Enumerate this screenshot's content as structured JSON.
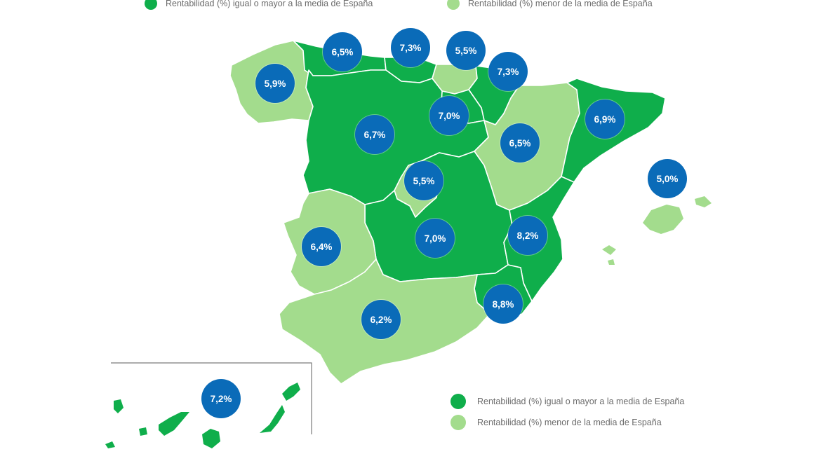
{
  "colors": {
    "above_or_equal": "#0fae4b",
    "below": "#a3dc8d",
    "bubble": "#0a6bb8"
  },
  "legend_top": {
    "above_label": "Rentabilidad (%) igual o mayor a la media de España",
    "below_label": "Rentabilidad (%) menor de la media de España"
  },
  "legend_bottom": {
    "above_label": "Rentabilidad (%) igual o mayor a la media de España",
    "below_label": "Rentabilidad (%) menor de la media de España"
  },
  "regions": [
    {
      "name": "Galicia",
      "category": "below",
      "value": "5,9%"
    },
    {
      "name": "Asturias",
      "category": "above",
      "value": "6,5%"
    },
    {
      "name": "Cantabria",
      "category": "above",
      "value": "7,3%"
    },
    {
      "name": "País Vasco",
      "category": "below",
      "value": "5,5%"
    },
    {
      "name": "Navarra",
      "category": "above",
      "value": "7,3%"
    },
    {
      "name": "La Rioja",
      "category": "above",
      "value": "7,0%"
    },
    {
      "name": "Castilla y León",
      "category": "above",
      "value": "6,7%"
    },
    {
      "name": "Aragón",
      "category": "below",
      "value": "6,5%"
    },
    {
      "name": "Cataluña",
      "category": "above",
      "value": "6,9%"
    },
    {
      "name": "Illes Balears",
      "category": "below",
      "value": "5,0%"
    },
    {
      "name": "Madrid",
      "category": "below",
      "value": "5,5%"
    },
    {
      "name": "Castilla-La Mancha",
      "category": "above",
      "value": "7,0%"
    },
    {
      "name": "Comunitat Valenciana",
      "category": "above",
      "value": "8,2%"
    },
    {
      "name": "Extremadura",
      "category": "below",
      "value": "6,4%"
    },
    {
      "name": "Región de Murcia",
      "category": "above",
      "value": "8,8%"
    },
    {
      "name": "Andalucía",
      "category": "below",
      "value": "6,2%"
    },
    {
      "name": "Canarias",
      "category": "above",
      "value": "7,2%"
    }
  ]
}
